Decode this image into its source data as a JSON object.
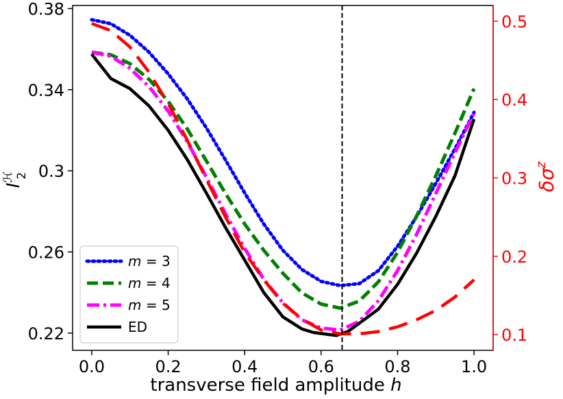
{
  "chart_data": {
    "type": "line",
    "xlabel": "transverse field amplitude",
    "xlabel_var": "h",
    "ylabel_left": {
      "base": "I",
      "sub": "2",
      "sup": "ℋ"
    },
    "ylabel_right": {
      "prefix": "δσ",
      "sup": "z"
    },
    "xlim": [
      -0.05,
      1.05
    ],
    "ylim_left": [
      0.2115,
      0.3815
    ],
    "ylim_right": [
      0.08,
      0.52
    ],
    "x_ticks": [
      0.0,
      0.2,
      0.4,
      0.6,
      0.8,
      1.0
    ],
    "x_tick_labels": [
      "0.0",
      "0.2",
      "0.4",
      "0.6",
      "0.8",
      "1.0"
    ],
    "y_left_ticks": [
      0.22,
      0.26,
      0.3,
      0.34,
      0.38
    ],
    "y_left_tick_labels": [
      "0.22",
      "0.26",
      "0.3",
      "0.34",
      "0.38"
    ],
    "y_right_ticks": [
      0.1,
      0.2,
      0.3,
      0.4,
      0.5
    ],
    "y_right_tick_labels": [
      "0.1",
      "0.2",
      "0.3",
      "0.4",
      "0.5"
    ],
    "right_axis_color": "#ff0000",
    "vline": {
      "x": 0.655,
      "style": "dashed",
      "color": "#000000"
    },
    "legend": {
      "placement": "bottom-left",
      "entries": [
        {
          "var": "m",
          "value": "3",
          "series_index": 0
        },
        {
          "var": "m",
          "value": "4",
          "series_index": 1
        },
        {
          "var": "m",
          "value": "5",
          "series_index": 2
        },
        {
          "label": "ED",
          "series_index": 3
        }
      ]
    },
    "series": [
      {
        "axis": "left",
        "color": "#0000ff",
        "style": "dotted",
        "x": [
          0.0,
          0.05,
          0.1,
          0.15,
          0.2,
          0.25,
          0.3,
          0.35,
          0.4,
          0.45,
          0.5,
          0.55,
          0.6,
          0.65,
          0.7,
          0.75,
          0.8,
          0.85,
          0.9,
          0.95,
          1.0
        ],
        "y": [
          0.3745,
          0.3725,
          0.3668,
          0.3585,
          0.3478,
          0.3354,
          0.3211,
          0.3053,
          0.2891,
          0.2738,
          0.2608,
          0.2513,
          0.2455,
          0.2434,
          0.2444,
          0.2508,
          0.2628,
          0.2775,
          0.2938,
          0.3108,
          0.3288
        ]
      },
      {
        "axis": "left",
        "color": "#008000",
        "style": "dashed",
        "x": [
          0.0,
          0.05,
          0.1,
          0.15,
          0.2,
          0.25,
          0.3,
          0.35,
          0.4,
          0.45,
          0.5,
          0.55,
          0.6,
          0.65,
          0.7,
          0.75,
          0.8,
          0.85,
          0.9,
          0.95,
          1.0
        ],
        "y": [
          0.3585,
          0.3572,
          0.3528,
          0.3451,
          0.3343,
          0.3206,
          0.3048,
          0.2888,
          0.2738,
          0.2608,
          0.2495,
          0.2398,
          0.2343,
          0.2323,
          0.2358,
          0.2453,
          0.2598,
          0.2778,
          0.2975,
          0.3185,
          0.3405
        ]
      },
      {
        "axis": "left",
        "color": "#ff00ff",
        "style": "dashdot",
        "x": [
          0.0,
          0.05,
          0.1,
          0.15,
          0.2,
          0.25,
          0.3,
          0.35,
          0.4,
          0.45,
          0.5,
          0.55,
          0.6,
          0.65,
          0.7,
          0.75,
          0.8,
          0.85,
          0.9,
          0.95,
          1.0
        ],
        "y": [
          0.3585,
          0.3565,
          0.3505,
          0.3415,
          0.3295,
          0.3143,
          0.2968,
          0.2788,
          0.2618,
          0.2465,
          0.235,
          0.2265,
          0.2225,
          0.2215,
          0.2258,
          0.236,
          0.2508,
          0.2688,
          0.2888,
          0.3088,
          0.3285
        ]
      },
      {
        "axis": "left",
        "color": "#000000",
        "style": "solid",
        "x": [
          0.0,
          0.05,
          0.1,
          0.15,
          0.2,
          0.25,
          0.3,
          0.35,
          0.4,
          0.45,
          0.5,
          0.55,
          0.58,
          0.64,
          0.67,
          0.7,
          0.75,
          0.8,
          0.85,
          0.9,
          0.95,
          1.0
        ],
        "y": [
          0.3575,
          0.3455,
          0.3405,
          0.332,
          0.32,
          0.3055,
          0.289,
          0.272,
          0.256,
          0.24,
          0.228,
          0.222,
          0.2203,
          0.2188,
          0.2208,
          0.2248,
          0.2318,
          0.244,
          0.2595,
          0.2775,
          0.2975,
          0.3255
        ]
      },
      {
        "axis": "right",
        "color": "#ff0000",
        "style": "longdash",
        "x": [
          0.0,
          0.05,
          0.1,
          0.15,
          0.2,
          0.25,
          0.3,
          0.35,
          0.4,
          0.45,
          0.5,
          0.55,
          0.6,
          0.65,
          0.7,
          0.75,
          0.8,
          0.85,
          0.9,
          0.95,
          1.0
        ],
        "y": [
          0.497,
          0.488,
          0.467,
          0.435,
          0.395,
          0.348,
          0.298,
          0.25,
          0.205,
          0.17,
          0.14,
          0.12,
          0.106,
          0.101,
          0.101,
          0.104,
          0.11,
          0.119,
          0.131,
          0.148,
          0.17
        ]
      }
    ]
  }
}
